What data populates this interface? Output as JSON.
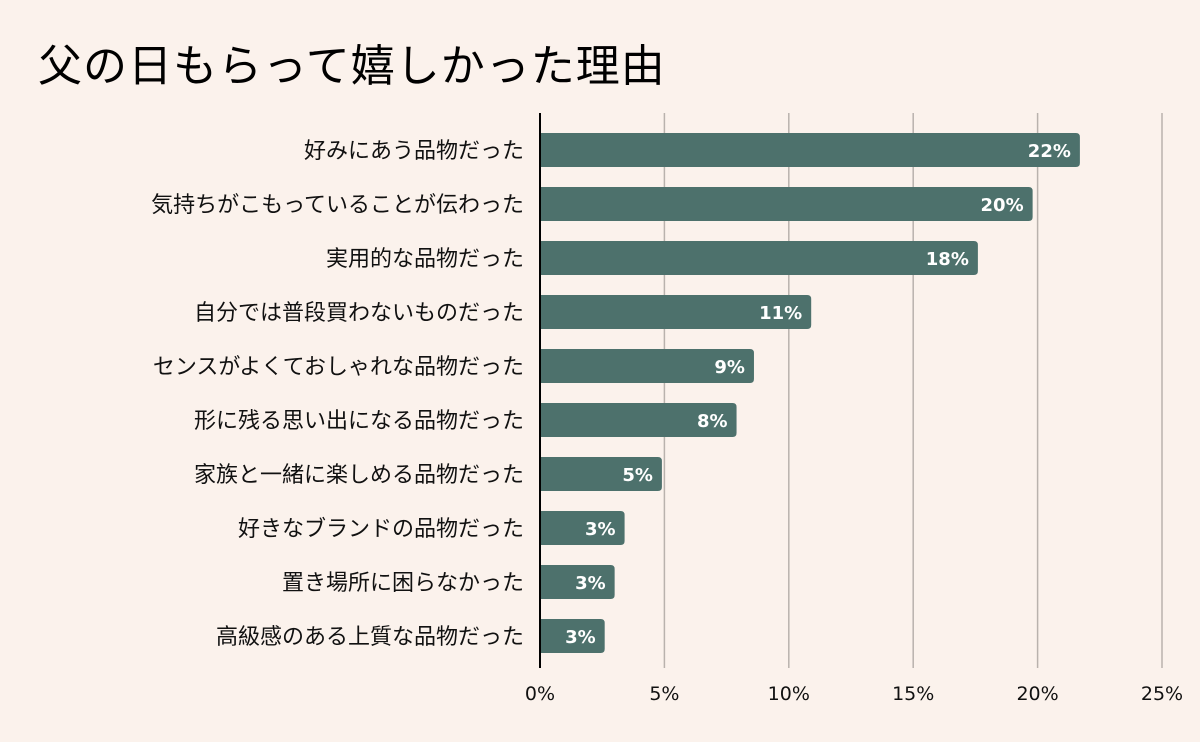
{
  "title": "父の日もらって嬉しかった理由",
  "colors": {
    "background": "#fbf2ec",
    "bar": "#4d716c",
    "grid": "#b9b2ad",
    "axis": "#000000",
    "data_label": "#ffffff"
  },
  "chart_data": {
    "type": "bar",
    "orientation": "horizontal",
    "title": "父の日もらって嬉しかった理由",
    "categories": [
      "好みにあう品物だった",
      "気持ちがこもっていることが伝わった",
      "実用的な品物だった",
      "自分では普段買わないものだった",
      "センスがよくておしゃれな品物だった",
      "形に残る思い出になる品物だった",
      "家族と一緒に楽しめる品物だった",
      "好きなブランドの品物だった",
      "置き場所に困らなかった",
      "高級感のある上質な品物だった"
    ],
    "values": [
      21.7,
      19.8,
      17.6,
      10.9,
      8.6,
      7.9,
      4.9,
      3.4,
      3.0,
      2.6
    ],
    "data_labels": [
      "22%",
      "20%",
      "18%",
      "11%",
      "9%",
      "8%",
      "5%",
      "3%",
      "3%",
      "3%"
    ],
    "xlim": [
      0,
      25
    ],
    "x_ticks": [
      0,
      5,
      10,
      15,
      20,
      25
    ],
    "x_tick_labels": [
      "0%",
      "5%",
      "10%",
      "15%",
      "20%",
      "25%"
    ],
    "xlabel": "",
    "ylabel": "",
    "grid": true,
    "legend": "none"
  }
}
